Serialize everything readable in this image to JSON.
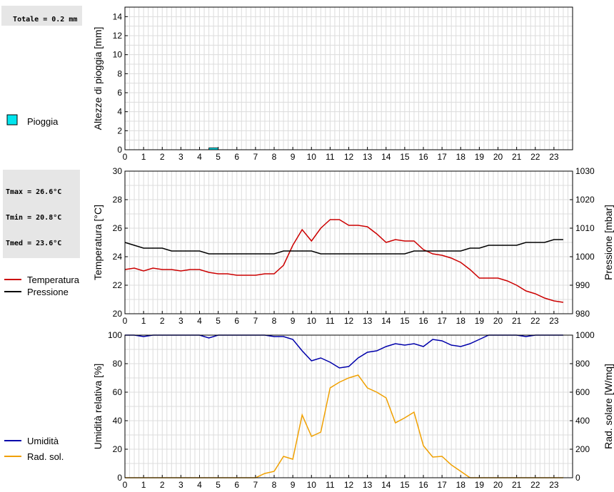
{
  "rain_panel": {
    "total_label": "Totale = 0.2 mm",
    "legend": {
      "label": "Pioggia",
      "color": "#00e5ee"
    }
  },
  "temp_panel": {
    "stats": {
      "tmax": "Tmax = 26.6°C",
      "tmin": "Tmin = 20.8°C",
      "tmed": "Tmed = 23.6°C"
    },
    "legend": [
      {
        "label": "Temperatura",
        "color": "#cc0000"
      },
      {
        "label": "Pressione",
        "color": "#000000"
      }
    ]
  },
  "hum_panel": {
    "legend": [
      {
        "label": "Umidità",
        "color": "#0000aa"
      },
      {
        "label": "Rad. sol.",
        "color": "#f0a000"
      }
    ]
  },
  "chart_data": [
    {
      "type": "bar",
      "ylabel": "Altezze di pioggia [mm]",
      "xlim": [
        0,
        24
      ],
      "ylim": [
        0,
        15
      ],
      "yticks": [
        0,
        2,
        4,
        6,
        8,
        10,
        12,
        14
      ],
      "xticks": [
        0,
        1,
        2,
        3,
        4,
        5,
        6,
        7,
        8,
        9,
        10,
        11,
        12,
        13,
        14,
        15,
        16,
        17,
        18,
        19,
        20,
        21,
        22,
        23
      ],
      "series": [
        {
          "name": "Pioggia",
          "color": "#00e5ee",
          "bars": [
            {
              "x": 5.0,
              "value": 0.2
            }
          ]
        }
      ]
    },
    {
      "type": "line",
      "ylabel": "Temperatura [°C]",
      "y2label": "Pressione [mbar]",
      "xlim": [
        0,
        24
      ],
      "ylim": [
        20,
        30
      ],
      "y2lim": [
        980,
        1030
      ],
      "yticks": [
        20,
        22,
        24,
        26,
        28,
        30
      ],
      "y2ticks": [
        980,
        990,
        1000,
        1010,
        1020,
        1030
      ],
      "xticks": [
        0,
        1,
        2,
        3,
        4,
        5,
        6,
        7,
        8,
        9,
        10,
        11,
        12,
        13,
        14,
        15,
        16,
        17,
        18,
        19,
        20,
        21,
        22,
        23
      ],
      "x": [
        0,
        0.5,
        1,
        1.5,
        2,
        2.5,
        3,
        3.5,
        4,
        4.5,
        5,
        5.5,
        6,
        6.5,
        7,
        7.5,
        8,
        8.5,
        9,
        9.5,
        10,
        10.5,
        11,
        11.5,
        12,
        12.5,
        13,
        13.5,
        14,
        14.5,
        15,
        15.5,
        16,
        16.5,
        17,
        17.5,
        18,
        18.5,
        19,
        19.5,
        20,
        20.5,
        21,
        21.5,
        22,
        22.5,
        23,
        23.5
      ],
      "series": [
        {
          "name": "Temperatura",
          "color": "#cc0000",
          "axis": "left",
          "values": [
            23.1,
            23.2,
            23.0,
            23.2,
            23.1,
            23.1,
            23.0,
            23.1,
            23.1,
            22.9,
            22.8,
            22.8,
            22.7,
            22.7,
            22.7,
            22.8,
            22.8,
            23.4,
            24.8,
            25.9,
            25.1,
            26.0,
            26.6,
            26.6,
            26.2,
            26.2,
            26.1,
            25.6,
            25.0,
            25.2,
            25.1,
            25.1,
            24.5,
            24.2,
            24.1,
            23.9,
            23.6,
            23.1,
            22.5,
            22.5,
            22.5,
            22.3,
            22.0,
            21.6,
            21.4,
            21.1,
            20.9,
            20.8
          ]
        },
        {
          "name": "Pressione",
          "color": "#000000",
          "axis": "right",
          "values": [
            1005,
            1004,
            1003,
            1003,
            1003,
            1002,
            1002,
            1002,
            1002,
            1001,
            1001,
            1001,
            1001,
            1001,
            1001,
            1001,
            1001,
            1002,
            1002,
            1002,
            1002,
            1001,
            1001,
            1001,
            1001,
            1001,
            1001,
            1001,
            1001,
            1001,
            1001,
            1002,
            1002,
            1002,
            1002,
            1002,
            1002,
            1003,
            1003,
            1004,
            1004,
            1004,
            1004,
            1005,
            1005,
            1005,
            1006,
            1006
          ]
        }
      ]
    },
    {
      "type": "line",
      "ylabel": "Umidità relativa [%]",
      "y2label": "Rad. solare [W/mq]",
      "xlim": [
        0,
        24
      ],
      "ylim": [
        0,
        100
      ],
      "y2lim": [
        0,
        1000
      ],
      "yticks": [
        0,
        20,
        40,
        60,
        80,
        100
      ],
      "y2ticks": [
        0,
        200,
        400,
        600,
        800,
        1000
      ],
      "xticks": [
        0,
        1,
        2,
        3,
        4,
        5,
        6,
        7,
        8,
        9,
        10,
        11,
        12,
        13,
        14,
        15,
        16,
        17,
        18,
        19,
        20,
        21,
        22,
        23
      ],
      "x": [
        0,
        0.5,
        1,
        1.5,
        2,
        2.5,
        3,
        3.5,
        4,
        4.5,
        5,
        5.5,
        6,
        6.5,
        7,
        7.5,
        8,
        8.5,
        9,
        9.5,
        10,
        10.5,
        11,
        11.5,
        12,
        12.5,
        13,
        13.5,
        14,
        14.5,
        15,
        15.5,
        16,
        16.5,
        17,
        17.5,
        18,
        18.5,
        19,
        19.5,
        20,
        20.5,
        21,
        21.5,
        22,
        22.5,
        23,
        23.5
      ],
      "series": [
        {
          "name": "Umidità",
          "color": "#0000aa",
          "axis": "left",
          "values": [
            100,
            100,
            99,
            100,
            100,
            100,
            100,
            100,
            100,
            98,
            100,
            100,
            100,
            100,
            100,
            100,
            99,
            99,
            97,
            89,
            82,
            84,
            81,
            77,
            78,
            84,
            88,
            89,
            92,
            94,
            93,
            94,
            92,
            97,
            96,
            93,
            92,
            94,
            97,
            100,
            100,
            100,
            100,
            99,
            100,
            100,
            100,
            100
          ]
        },
        {
          "name": "Rad. sol.",
          "color": "#f0a000",
          "axis": "right",
          "values": [
            0,
            0,
            0,
            0,
            0,
            0,
            0,
            0,
            0,
            0,
            0,
            0,
            0,
            0,
            0,
            30,
            45,
            150,
            130,
            440,
            290,
            320,
            630,
            670,
            700,
            720,
            630,
            600,
            560,
            385,
            420,
            460,
            225,
            145,
            150,
            90,
            45,
            0,
            0,
            0,
            0,
            0,
            0,
            0,
            0,
            0,
            0,
            0
          ]
        }
      ]
    }
  ]
}
